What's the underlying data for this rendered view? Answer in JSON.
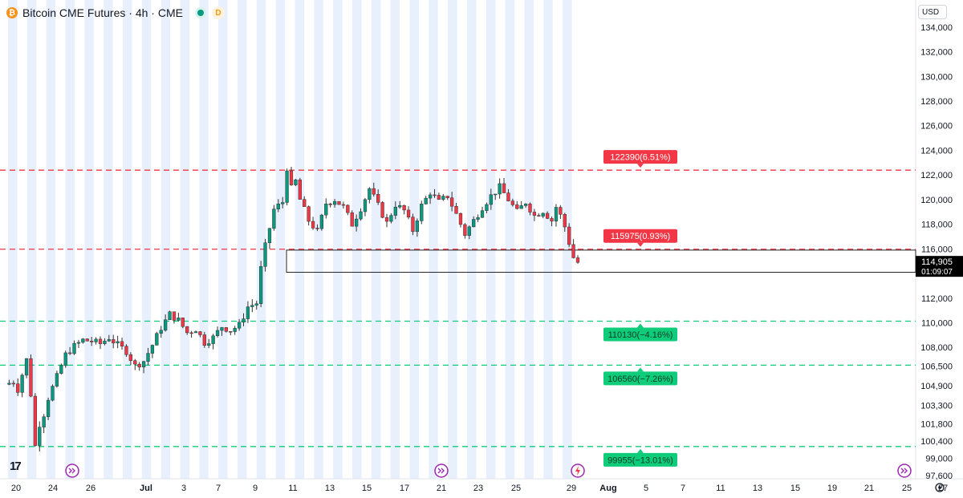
{
  "header": {
    "title": "Bitcoin CME Futures · 4h · CME",
    "coin_icon": "bitcoin-icon",
    "delayed_label": "D"
  },
  "currency": "USD",
  "logo": "17",
  "colors": {
    "up": "#089981",
    "down": "#f23645",
    "resistance": "#f23645",
    "support": "#0ecc7a",
    "session_band": "#e8f0fd"
  },
  "chart_data": {
    "type": "candlestick",
    "y_axis": {
      "range": [
        97600,
        134900
      ],
      "ticks": [
        134000,
        132000,
        130000,
        128000,
        126000,
        124000,
        122000,
        120000,
        118000,
        116000,
        112000,
        110000,
        108000,
        106500,
        104900,
        103300,
        101800,
        100400,
        99000,
        97600
      ],
      "tick_labels": [
        "134,000",
        "132,000",
        "130,000",
        "128,000",
        "126,000",
        "124,000",
        "122,000",
        "120,000",
        "118,000",
        "116,000",
        "112,000",
        "110,000",
        "108,000",
        "106,500",
        "104,900",
        "103,300",
        "101,800",
        "100,400",
        "99,000",
        "97,600"
      ]
    },
    "x_axis": {
      "tick_labels": [
        "20",
        "24",
        "26",
        "Jul",
        "3",
        "7",
        "9",
        "11",
        "13",
        "15",
        "17",
        "21",
        "23",
        "25",
        "29",
        "Aug",
        "5",
        "7",
        "11",
        "13",
        "15",
        "19",
        "21",
        "25",
        "27"
      ]
    },
    "price_path": [
      [
        0,
        105000
      ],
      [
        2,
        105200
      ],
      [
        3,
        104600
      ],
      [
        4,
        105800
      ],
      [
        5,
        107000
      ],
      [
        6,
        104200
      ],
      [
        7,
        100000
      ],
      [
        8,
        101800
      ],
      [
        9,
        102600
      ],
      [
        10,
        103900
      ],
      [
        12,
        105600
      ],
      [
        14,
        107400
      ],
      [
        16,
        108100
      ],
      [
        18,
        108600
      ],
      [
        20,
        108500
      ],
      [
        22,
        108300
      ],
      [
        24,
        108800
      ],
      [
        26,
        108200
      ],
      [
        28,
        107700
      ],
      [
        30,
        106500
      ],
      [
        32,
        106900
      ],
      [
        34,
        108200
      ],
      [
        36,
        109600
      ],
      [
        38,
        110700
      ],
      [
        40,
        110200
      ],
      [
        42,
        109200
      ],
      [
        44,
        109500
      ],
      [
        46,
        108400
      ],
      [
        48,
        108800
      ],
      [
        50,
        109700
      ],
      [
        52,
        109400
      ],
      [
        54,
        109800
      ],
      [
        56,
        111300
      ],
      [
        58,
        111600
      ],
      [
        59,
        114400
      ],
      [
        60,
        116200
      ],
      [
        62,
        119200
      ],
      [
        64,
        119800
      ],
      [
        65,
        122600
      ],
      [
        66,
        120900
      ],
      [
        67,
        121500
      ],
      [
        68,
        120000
      ],
      [
        70,
        118300
      ],
      [
        72,
        117400
      ],
      [
        74,
        119700
      ],
      [
        76,
        120000
      ],
      [
        78,
        119400
      ],
      [
        80,
        118000
      ],
      [
        82,
        119300
      ],
      [
        84,
        120900
      ],
      [
        86,
        119500
      ],
      [
        88,
        118100
      ],
      [
        90,
        119600
      ],
      [
        92,
        119100
      ],
      [
        94,
        117500
      ],
      [
        96,
        119500
      ],
      [
        98,
        120600
      ],
      [
        100,
        119800
      ],
      [
        102,
        120300
      ],
      [
        104,
        118800
      ],
      [
        106,
        117200
      ],
      [
        108,
        118300
      ],
      [
        110,
        119400
      ],
      [
        112,
        120300
      ],
      [
        114,
        121000
      ],
      [
        116,
        120000
      ],
      [
        118,
        119000
      ],
      [
        120,
        119800
      ],
      [
        122,
        118700
      ],
      [
        124,
        119100
      ],
      [
        126,
        118300
      ],
      [
        127,
        119400
      ],
      [
        128,
        118700
      ],
      [
        129,
        117800
      ],
      [
        130,
        116500
      ],
      [
        131,
        115300
      ],
      [
        132,
        114905
      ]
    ],
    "last_price": "114,905",
    "countdown": "01:09:07",
    "box_top": 115900,
    "box_bottom": 114100,
    "levels": [
      {
        "value": 122390,
        "label": "122390(6.51%)",
        "kind": "resistance"
      },
      {
        "value": 115975,
        "label": "115975(0.93%)",
        "kind": "resistance"
      },
      {
        "value": 110130,
        "label": "110130(−4.16%)",
        "kind": "support"
      },
      {
        "value": 106560,
        "label": "106560(−7.26%)",
        "kind": "support"
      },
      {
        "value": 99955,
        "label": "99955(−13.01%)",
        "kind": "support"
      }
    ],
    "session_bands": 30,
    "event_markers": [
      "forward-arrow-icon",
      "forward-arrow-icon",
      "lightning-icon",
      "forward-arrow-icon"
    ]
  }
}
